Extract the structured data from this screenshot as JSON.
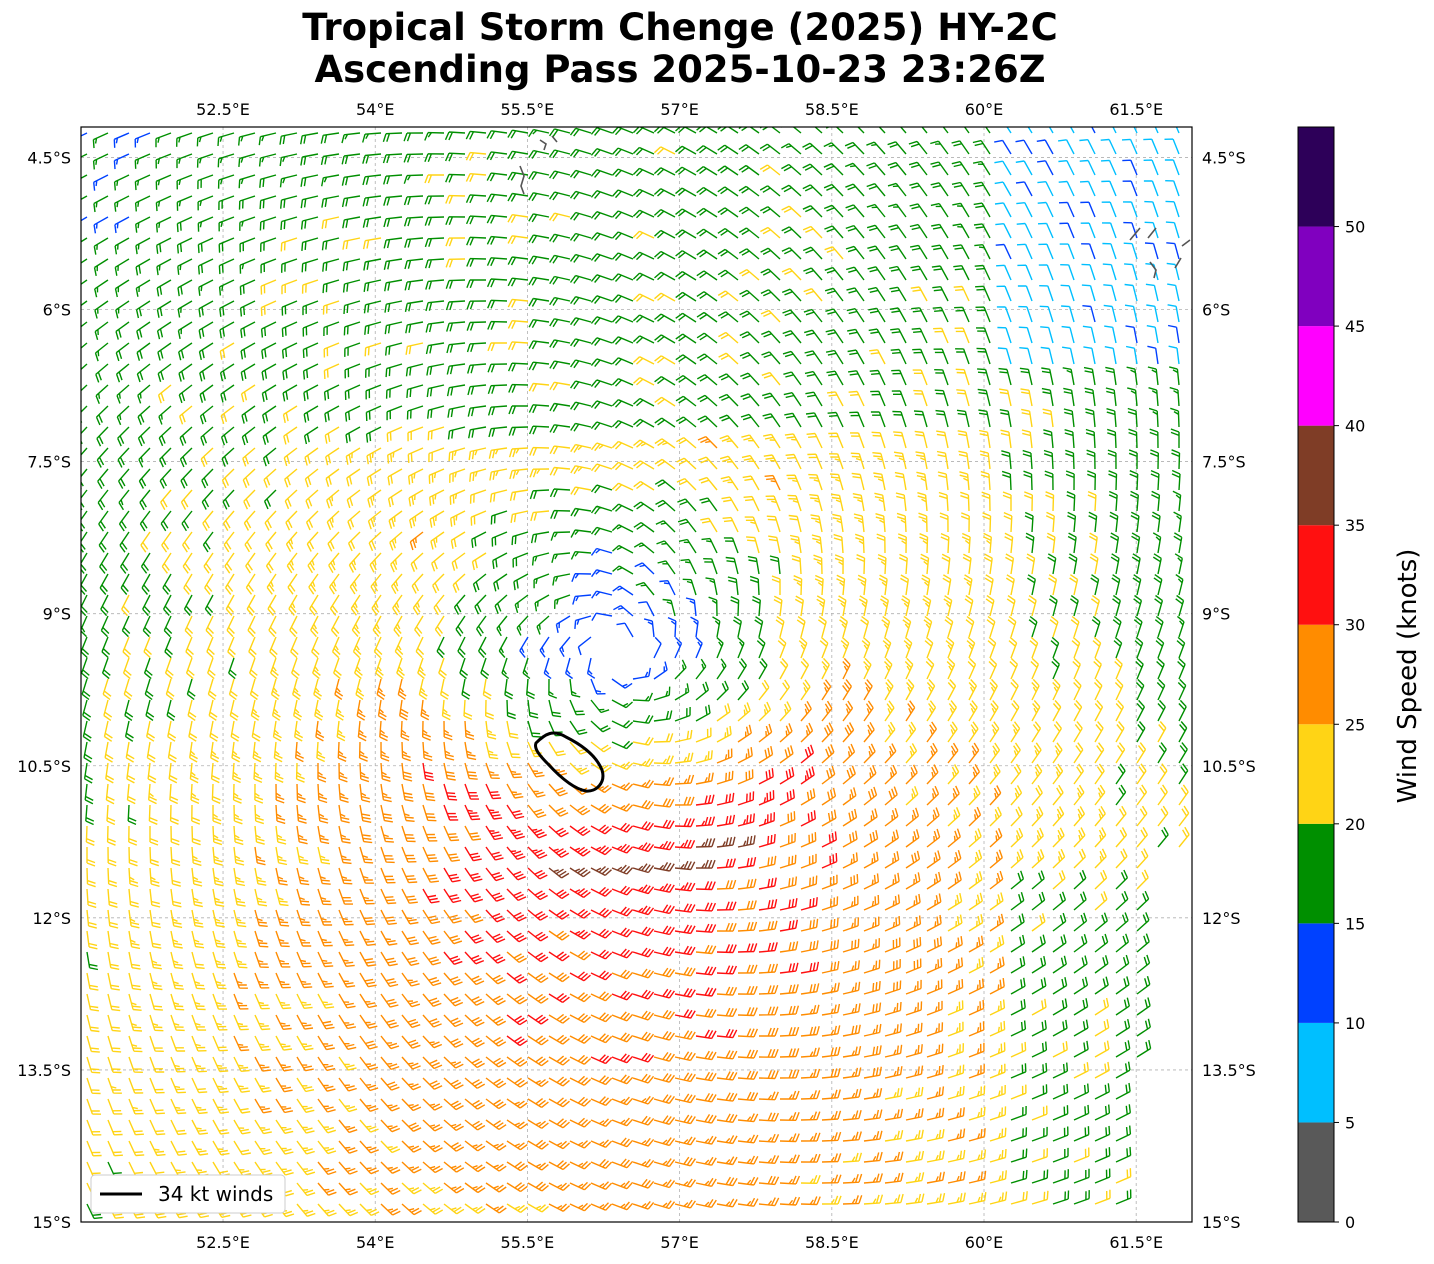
{
  "title": {
    "line1": "Tropical Storm Chenge (2025) HY-2C",
    "line2": "Ascending Pass 2025-10-23 23:26Z"
  },
  "map": {
    "lon_range": [
      51.1,
      62.05
    ],
    "lat_range": [
      -15.0,
      -4.2
    ],
    "lon_ticks": [
      {
        "value": 52.5,
        "label": "52.5°E"
      },
      {
        "value": 54,
        "label": "54°E"
      },
      {
        "value": 55.5,
        "label": "55.5°E"
      },
      {
        "value": 57,
        "label": "57°E"
      },
      {
        "value": 58.5,
        "label": "58.5°E"
      },
      {
        "value": 60,
        "label": "60°E"
      },
      {
        "value": 61.5,
        "label": "61.5°E"
      }
    ],
    "lat_ticks": [
      {
        "value": -4.5,
        "label": "4.5°S"
      },
      {
        "value": -6,
        "label": "6°S"
      },
      {
        "value": -7.5,
        "label": "7.5°S"
      },
      {
        "value": -9,
        "label": "9°S"
      },
      {
        "value": -10.5,
        "label": "10.5°S"
      },
      {
        "value": -12,
        "label": "12°S"
      },
      {
        "value": -13.5,
        "label": "13.5°S"
      },
      {
        "value": -15,
        "label": "15°S"
      }
    ],
    "gridlines": true,
    "storm_center": {
      "lon": 56.4,
      "lat": -9.4
    },
    "wind_field": "cyclonic (clockwise, Southern Hemisphere) wind barbs colored by speed; strongest 30-35 kt south-southeast of center",
    "coastline_color": "#555555"
  },
  "legend": {
    "label": "34 kt winds",
    "position": "lower-left",
    "contour_color": "#000000"
  },
  "colorbar": {
    "title": "Wind Speed (knots)",
    "tick_labels": [
      "0",
      "5",
      "10",
      "15",
      "20",
      "25",
      "30",
      "35",
      "40",
      "45",
      "50"
    ],
    "bins": [
      {
        "min": 0,
        "max": 5,
        "color": "#595959"
      },
      {
        "min": 5,
        "max": 10,
        "color": "#00bfff"
      },
      {
        "min": 10,
        "max": 15,
        "color": "#0041ff"
      },
      {
        "min": 15,
        "max": 20,
        "color": "#008f00"
      },
      {
        "min": 20,
        "max": 25,
        "color": "#ffd415"
      },
      {
        "min": 25,
        "max": 30,
        "color": "#ff8c00"
      },
      {
        "min": 30,
        "max": 35,
        "color": "#ff1010"
      },
      {
        "min": 35,
        "max": 40,
        "color": "#7f3d26"
      },
      {
        "min": 40,
        "max": 45,
        "color": "#ff00ff"
      },
      {
        "min": 45,
        "max": 50,
        "color": "#8000bf"
      },
      {
        "min": 50,
        "max": 55,
        "color": "#2d0059"
      }
    ]
  }
}
